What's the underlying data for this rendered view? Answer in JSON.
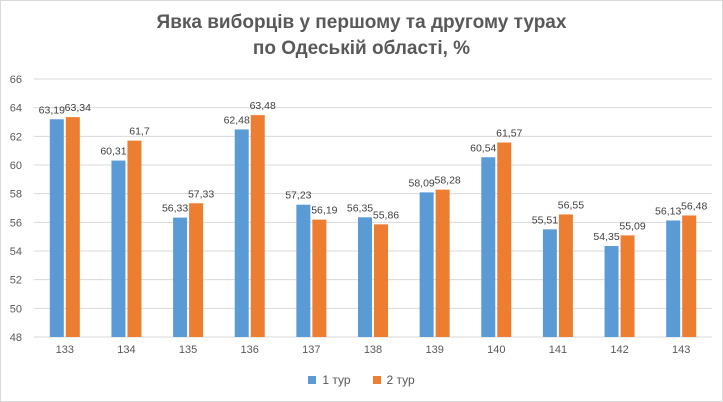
{
  "chart_data": {
    "type": "bar",
    "title_lines": [
      "Явка виборців  у першому та другому турах",
      "по Одеській області, %"
    ],
    "categories": [
      "133",
      "134",
      "135",
      "136",
      "137",
      "138",
      "139",
      "140",
      "141",
      "142",
      "143"
    ],
    "series": [
      {
        "name": "1 тур",
        "color": "#5B9BD5",
        "values": [
          63.19,
          60.31,
          56.33,
          62.48,
          57.23,
          56.35,
          58.09,
          60.54,
          55.51,
          54.35,
          56.13
        ],
        "labels": [
          "63,19",
          "60,31",
          "56,33",
          "62,48",
          "57,23",
          "56,35",
          "58,09",
          "60,54",
          "55,51",
          "54,35",
          "56,13"
        ]
      },
      {
        "name": "2 тур",
        "color": "#ED7D31",
        "values": [
          63.34,
          61.7,
          57.33,
          63.48,
          56.19,
          55.86,
          58.28,
          61.57,
          56.55,
          55.09,
          56.48
        ],
        "labels": [
          "63,34",
          "61,7",
          "57,33",
          "63,48",
          "56,19",
          "55,86",
          "58,28",
          "61,57",
          "56,55",
          "55,09",
          "56,48"
        ]
      }
    ],
    "ylim": [
      48,
      66
    ],
    "yticks": [
      "48",
      "50",
      "52",
      "54",
      "56",
      "58",
      "60",
      "62",
      "64",
      "66"
    ],
    "grid": true,
    "legend_position": "bottom"
  }
}
